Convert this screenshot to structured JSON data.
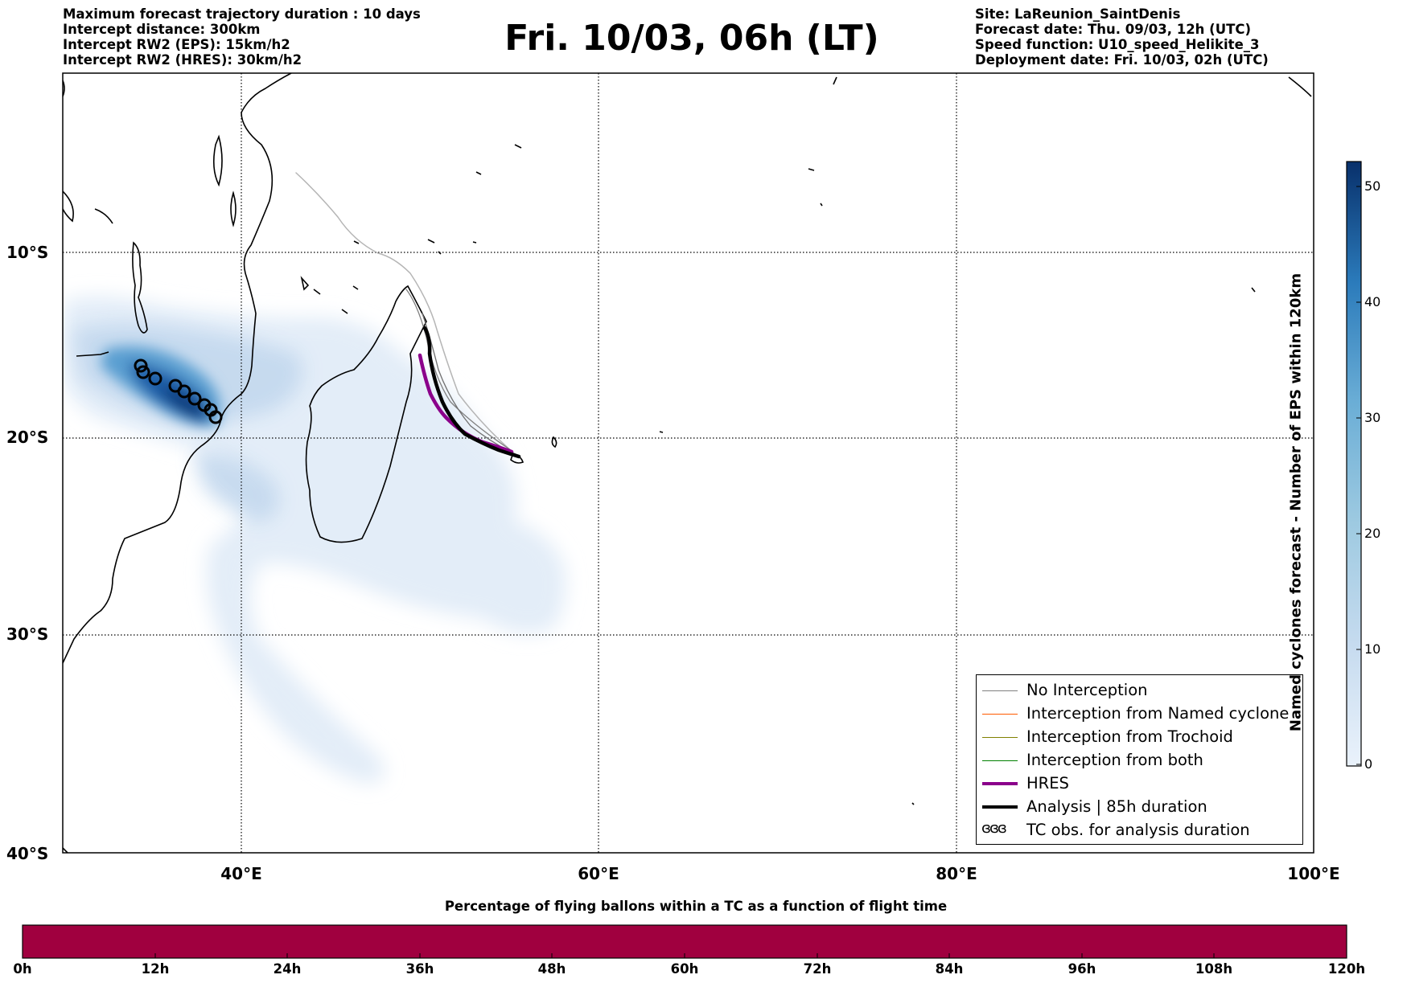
{
  "header": {
    "left": [
      "Maximum forecast trajectory duration : 10 days",
      "Intercept distance: 300km",
      "Intercept RW2 (EPS):  15km/h2",
      "Intercept RW2 (HRES): 30km/h2"
    ],
    "title": "Fri. 10/03, 06h (LT)",
    "right": [
      "Site: LaReunion_SaintDenis",
      "Forecast date: Thu. 09/03, 12h (UTC)",
      "Speed function: U10_speed_Helikite_3",
      "Deployment date: Fri. 10/03, 02h (UTC)"
    ]
  },
  "map": {
    "lat_labels": [
      "10°S",
      "20°S",
      "30°S",
      "40°S"
    ],
    "lon_labels": [
      "40°E",
      "60°E",
      "80°E",
      "100°E"
    ],
    "extent": {
      "lon": [
        30,
        100
      ],
      "lat": [
        -40,
        2
      ]
    },
    "gridlines": true
  },
  "legend": {
    "items": [
      {
        "label": "No Interception",
        "color": "#808080",
        "style": "thin"
      },
      {
        "label": "Interception from Named cyclone",
        "color": "#ff5a00",
        "style": "thin"
      },
      {
        "label": "Interception from Trochoid",
        "color": "#808000",
        "style": "thin"
      },
      {
        "label": "Interception from both",
        "color": "#008000",
        "style": "thin"
      },
      {
        "label": "HRES",
        "color": "#8b008b",
        "style": "thick"
      },
      {
        "label": "Analysis | 85h duration",
        "color": "#000000",
        "style": "thick"
      },
      {
        "label": "TC obs. for analysis duration",
        "color": "#000000",
        "style": "symbol",
        "symbol": "ɞɞɞ"
      }
    ]
  },
  "colorbar": {
    "title": "Named cyclones forecast - Number of EPS within 120km",
    "ticks": [
      "0",
      "10",
      "20",
      "30",
      "40",
      "50"
    ],
    "colors": [
      "#e6effa",
      "#c6dbef",
      "#9ecae1",
      "#6baed6",
      "#3182bd",
      "#08519c",
      "#08306b"
    ]
  },
  "probability_bar": {
    "title": "Percentage of flying ballons within a TC as a function of flight time",
    "ticks": [
      "0h",
      "12h",
      "24h",
      "36h",
      "48h",
      "60h",
      "72h",
      "84h",
      "96h",
      "108h",
      "120h"
    ],
    "color": "#a0003f"
  }
}
